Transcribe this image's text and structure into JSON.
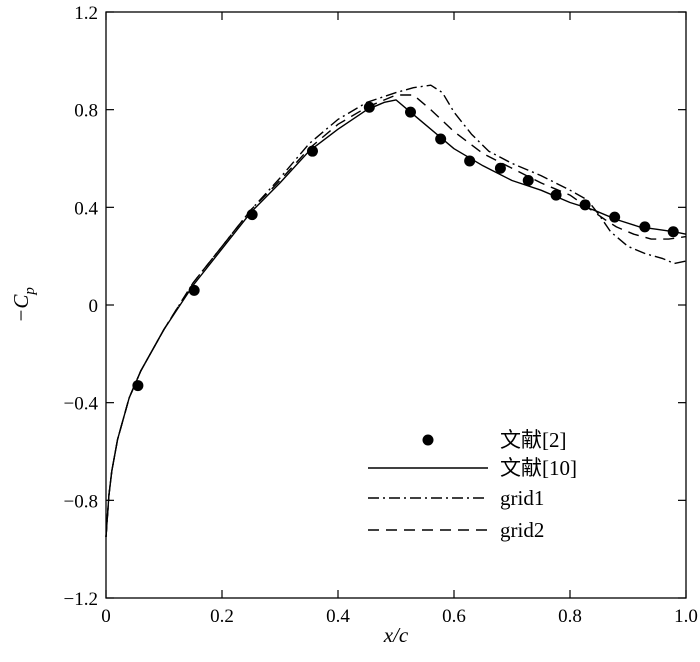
{
  "chart_data": {
    "type": "line",
    "xlabel": "x/c",
    "ylabel_main": "−C",
    "ylabel_sub": "p",
    "xlim": [
      0,
      1.0
    ],
    "ylim": [
      -1.2,
      1.2
    ],
    "x_ticks": [
      0,
      0.2,
      0.4,
      0.6,
      0.8,
      1.0
    ],
    "x_tick_labels": [
      "0",
      "0.2",
      "0.4",
      "0.6",
      "0.8",
      "1.0"
    ],
    "y_ticks": [
      -1.2,
      -0.8,
      -0.4,
      0,
      0.4,
      0.8,
      1.2
    ],
    "y_tick_labels": [
      "−1.2",
      "−0.8",
      "−0.4",
      "0",
      "0.4",
      "0.8",
      "1.2"
    ],
    "grid": false,
    "legend_position": "bottom-right",
    "series": [
      {
        "name": "文献[2]",
        "style": "markers",
        "color": "#000000",
        "x": [
          0.055,
          0.152,
          0.252,
          0.356,
          0.454,
          0.525,
          0.577,
          0.627,
          0.68,
          0.728,
          0.776,
          0.826,
          0.877,
          0.929,
          0.978
        ],
        "y": [
          -0.33,
          0.06,
          0.37,
          0.63,
          0.81,
          0.79,
          0.68,
          0.59,
          0.56,
          0.51,
          0.45,
          0.41,
          0.36,
          0.32,
          0.3
        ]
      },
      {
        "name": "文献[10]",
        "style": "solid",
        "color": "#000000",
        "x": [
          0.0,
          0.005,
          0.01,
          0.02,
          0.04,
          0.06,
          0.1,
          0.15,
          0.2,
          0.25,
          0.3,
          0.35,
          0.4,
          0.45,
          0.48,
          0.5,
          0.52,
          0.55,
          0.6,
          0.65,
          0.7,
          0.75,
          0.8,
          0.84,
          0.88,
          0.92,
          0.95,
          0.98,
          1.0
        ],
        "y": [
          -0.95,
          -0.78,
          -0.68,
          -0.55,
          -0.38,
          -0.27,
          -0.1,
          0.08,
          0.23,
          0.38,
          0.5,
          0.63,
          0.72,
          0.8,
          0.83,
          0.84,
          0.8,
          0.74,
          0.64,
          0.57,
          0.51,
          0.47,
          0.42,
          0.39,
          0.35,
          0.32,
          0.31,
          0.3,
          0.29
        ]
      },
      {
        "name": "grid1",
        "style": "dashdot",
        "color": "#000000",
        "x": [
          0.0,
          0.005,
          0.01,
          0.02,
          0.04,
          0.06,
          0.1,
          0.15,
          0.2,
          0.25,
          0.3,
          0.35,
          0.4,
          0.45,
          0.5,
          0.53,
          0.56,
          0.58,
          0.6,
          0.63,
          0.66,
          0.7,
          0.75,
          0.8,
          0.83,
          0.85,
          0.87,
          0.9,
          0.93,
          0.96,
          0.98,
          1.0
        ],
        "y": [
          -0.95,
          -0.78,
          -0.68,
          -0.55,
          -0.38,
          -0.27,
          -0.1,
          0.09,
          0.24,
          0.39,
          0.52,
          0.66,
          0.76,
          0.83,
          0.87,
          0.89,
          0.9,
          0.87,
          0.79,
          0.7,
          0.63,
          0.58,
          0.53,
          0.47,
          0.43,
          0.37,
          0.3,
          0.24,
          0.21,
          0.19,
          0.17,
          0.18
        ]
      },
      {
        "name": "grid2",
        "style": "dashed",
        "color": "#000000",
        "x": [
          0.0,
          0.005,
          0.01,
          0.02,
          0.04,
          0.06,
          0.1,
          0.15,
          0.2,
          0.25,
          0.3,
          0.35,
          0.4,
          0.45,
          0.5,
          0.53,
          0.56,
          0.6,
          0.65,
          0.7,
          0.75,
          0.8,
          0.83,
          0.86,
          0.88,
          0.91,
          0.94,
          0.97,
          1.0
        ],
        "y": [
          -0.95,
          -0.78,
          -0.68,
          -0.55,
          -0.38,
          -0.27,
          -0.1,
          0.09,
          0.24,
          0.39,
          0.51,
          0.64,
          0.74,
          0.81,
          0.86,
          0.86,
          0.8,
          0.71,
          0.62,
          0.56,
          0.5,
          0.45,
          0.4,
          0.35,
          0.32,
          0.29,
          0.27,
          0.27,
          0.28
        ]
      }
    ]
  }
}
